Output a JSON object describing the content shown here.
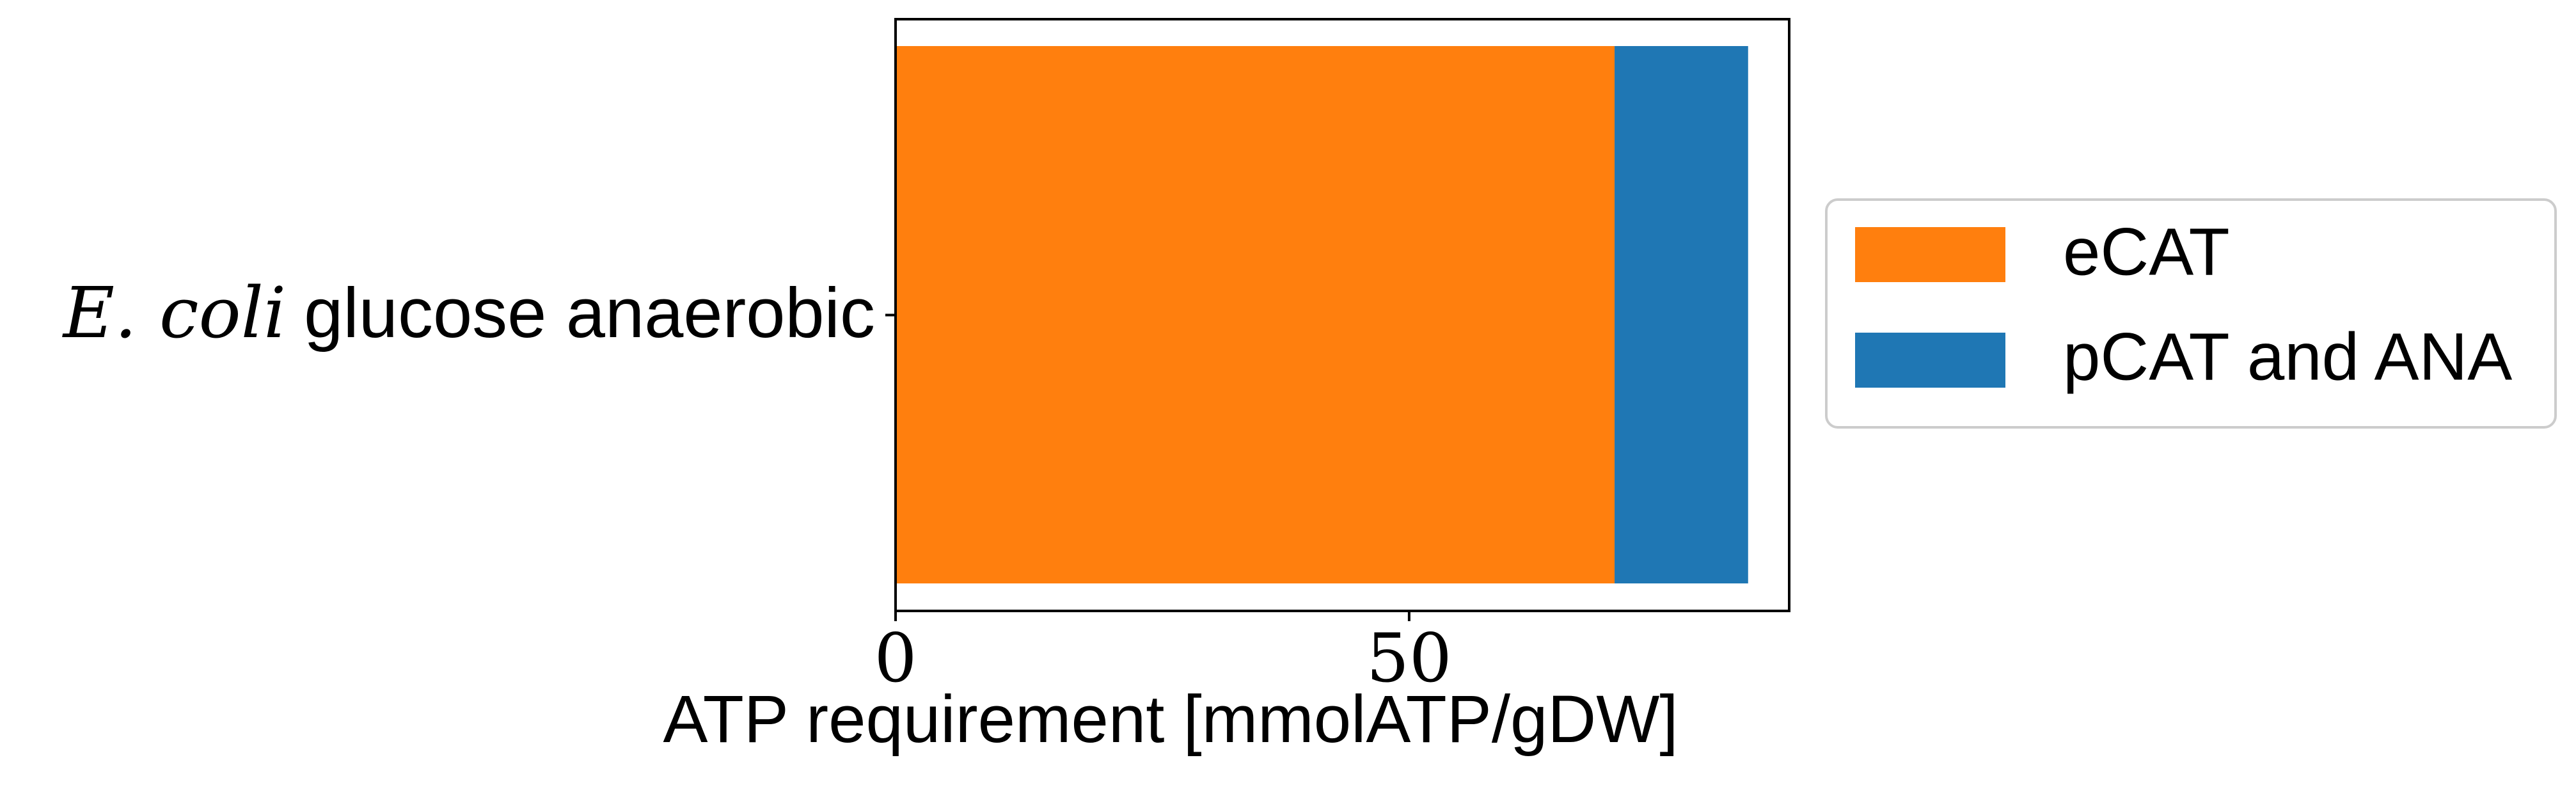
{
  "chart_data": {
    "type": "bar",
    "orientation": "horizontal",
    "stacked": true,
    "categories": [
      "glucose anaerobic"
    ],
    "category_prefix_italic": "E. coli",
    "series": [
      {
        "name": "eCAT",
        "values": [
          70
        ],
        "color": "#ff7f0e"
      },
      {
        "name": "pCAT and ANA",
        "values": [
          13
        ],
        "color": "#1f77b4"
      }
    ],
    "xlabel": "ATP requirement [mmolATP/gDW]",
    "ylabel": "",
    "title": "",
    "xlim": [
      0,
      87
    ],
    "xticks": [
      0,
      50
    ],
    "xtick_labels": [
      "0",
      "50"
    ],
    "grid": false,
    "legend_position": "outside-right"
  }
}
